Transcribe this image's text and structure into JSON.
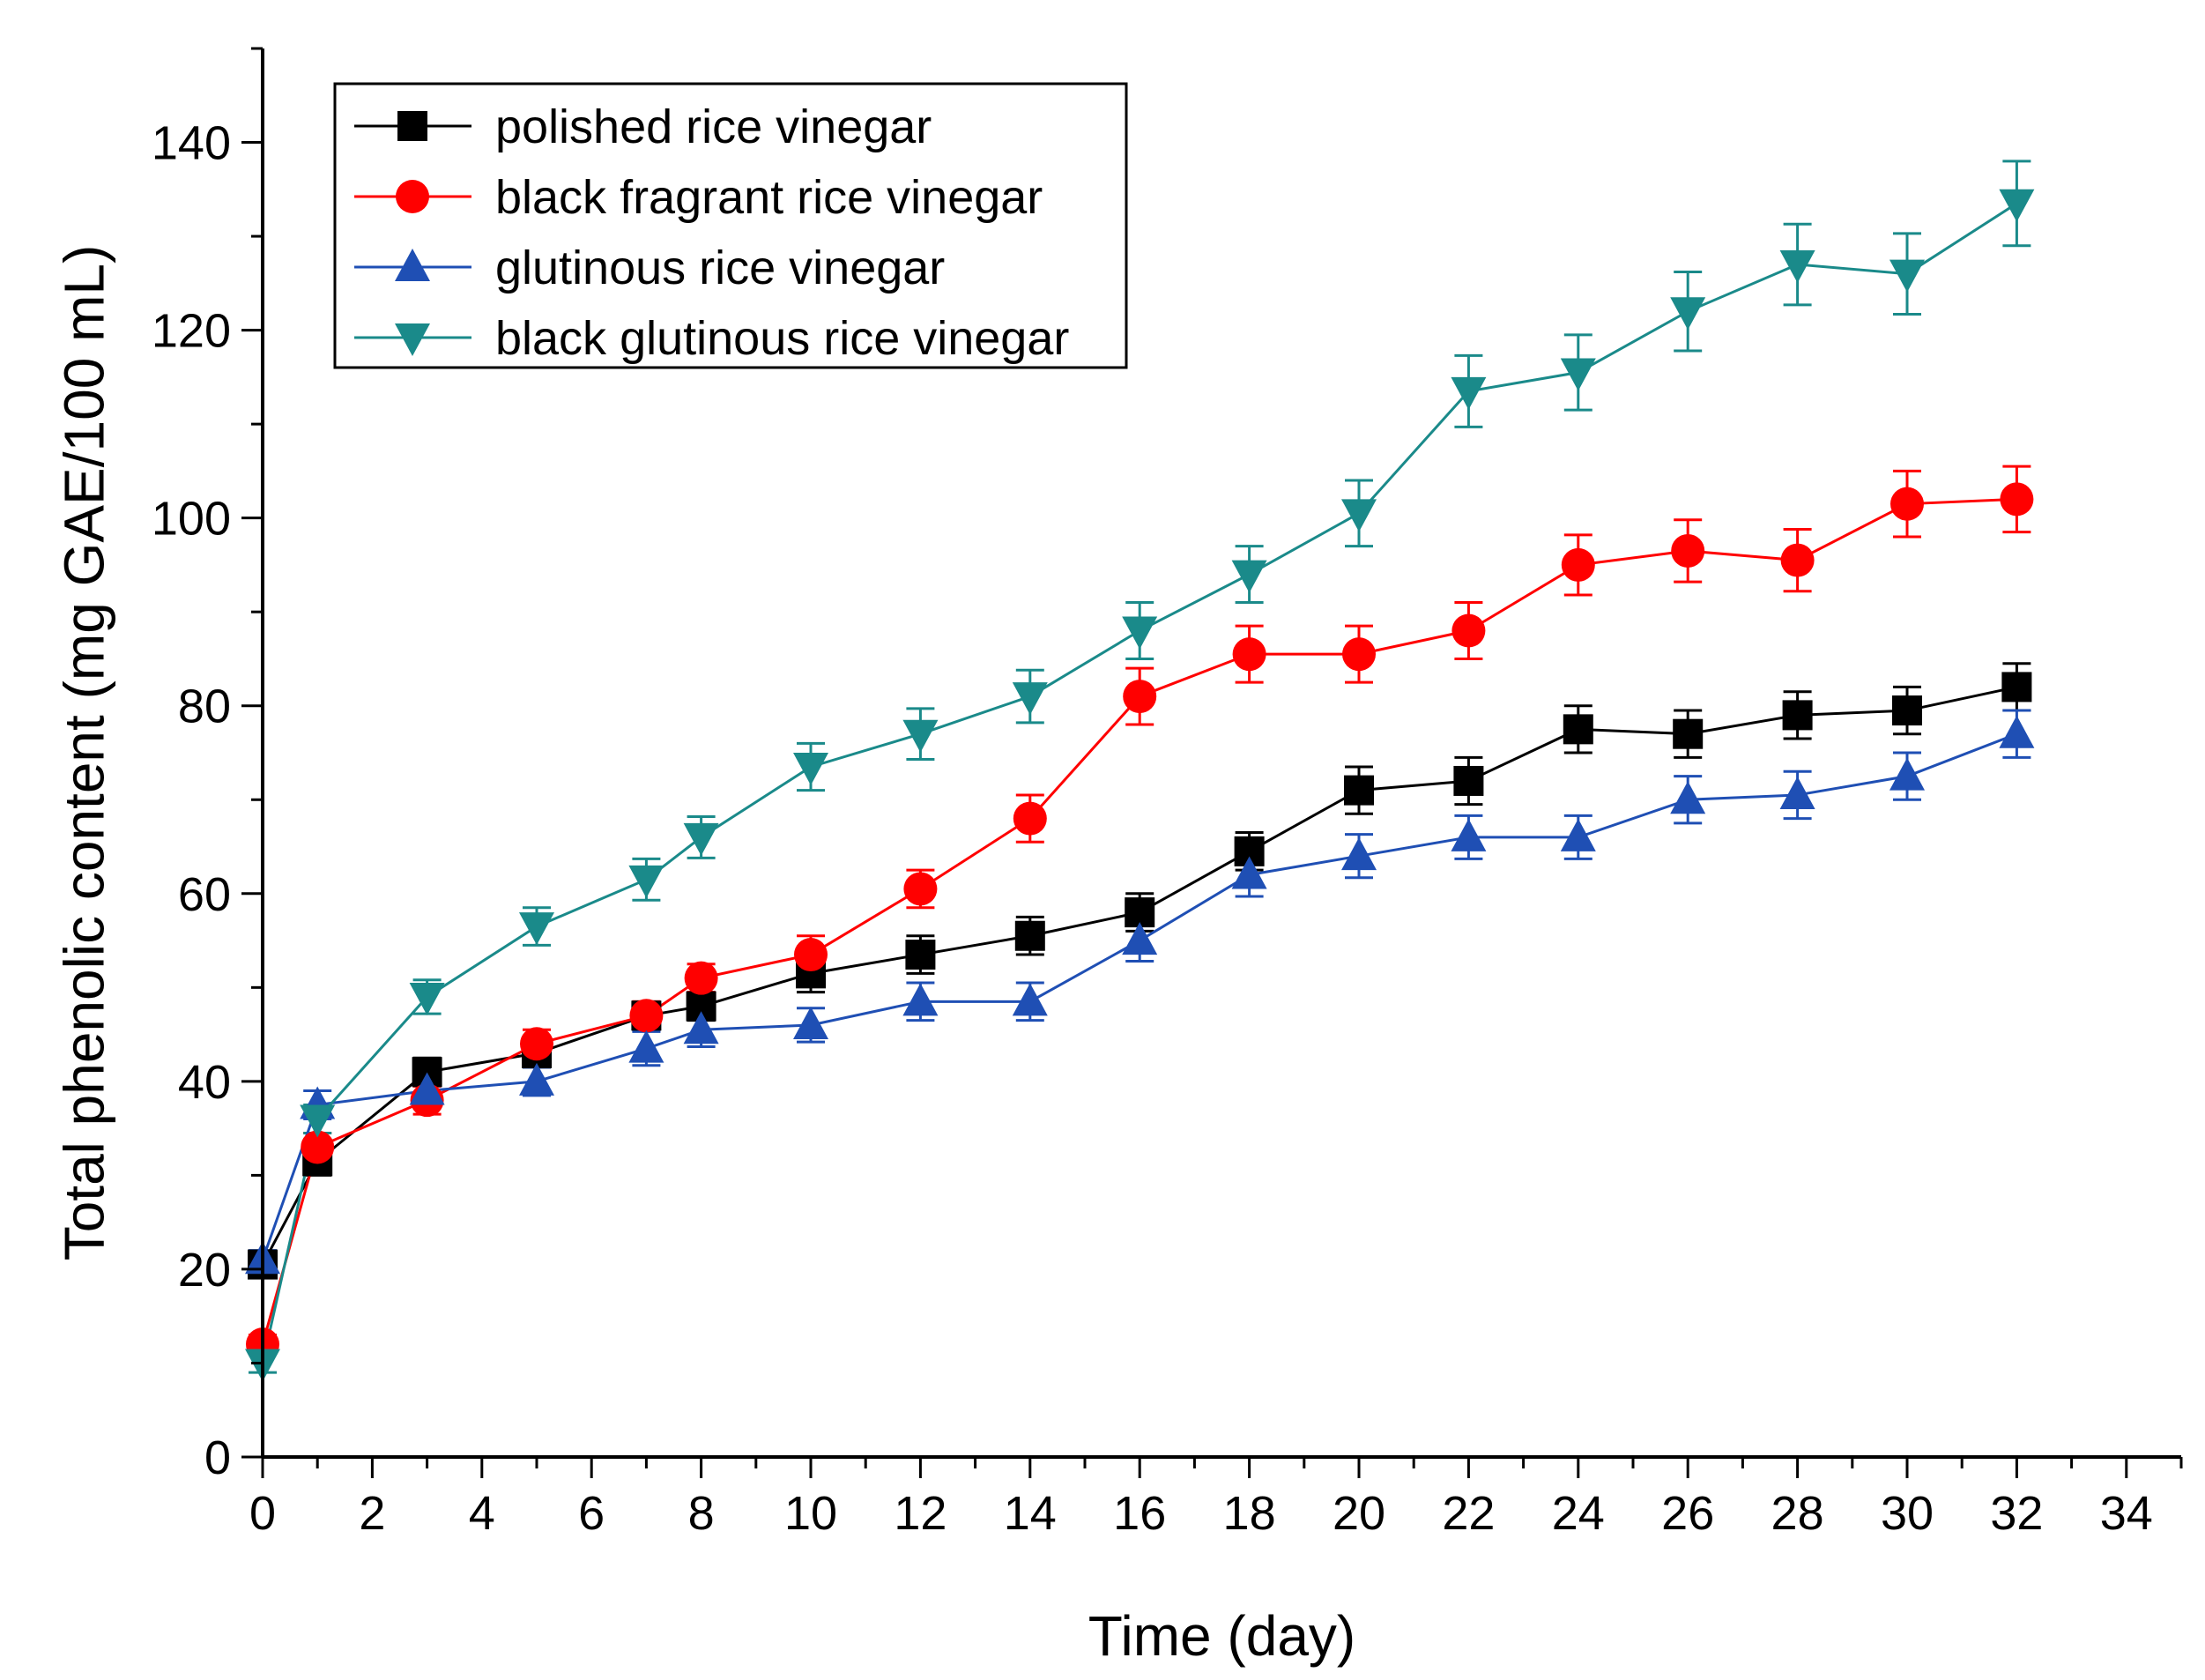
{
  "chart_data": {
    "type": "line",
    "xlabel": "Time (day)",
    "ylabel": "Total phenolic content (mg GAE/100 mL)",
    "xlim": [
      0,
      35
    ],
    "ylim": [
      0,
      150
    ],
    "xticks": [
      0,
      2,
      4,
      6,
      8,
      10,
      12,
      14,
      16,
      18,
      20,
      22,
      24,
      26,
      28,
      30,
      32,
      34
    ],
    "yticks": [
      0,
      20,
      40,
      60,
      80,
      100,
      120,
      140
    ],
    "grid": false,
    "legend_position": "top-left",
    "x": [
      0,
      1,
      3,
      5,
      7,
      8,
      10,
      12,
      14,
      16,
      18,
      20,
      22,
      24,
      26,
      28,
      30,
      32
    ],
    "series": [
      {
        "name": "polished rice vinegar",
        "color": "#000000",
        "marker": "square",
        "values": [
          20.5,
          31.5,
          41,
          43,
          47,
          48,
          51.5,
          53.5,
          55.5,
          58,
          64.5,
          71,
          72,
          77.5,
          77,
          79,
          79.5,
          82
        ],
        "error": [
          1,
          1.5,
          1.5,
          1.5,
          1.5,
          1.5,
          2,
          2,
          2,
          2,
          2,
          2.5,
          2.5,
          2.5,
          2.5,
          2.5,
          2.5,
          2.5
        ]
      },
      {
        "name": "black fragrant rice vinegar",
        "color": "#ff0000",
        "marker": "circle",
        "values": [
          12,
          33,
          38,
          44,
          47,
          51,
          53.5,
          60.5,
          68,
          81,
          85.5,
          85.5,
          88,
          95,
          96.5,
          95.5,
          101.5,
          102
        ],
        "error": [
          1,
          1.5,
          1.5,
          1.5,
          1.5,
          1.5,
          2,
          2,
          2.5,
          3,
          3,
          3,
          3,
          3.2,
          3.3,
          3.3,
          3.5,
          3.5
        ]
      },
      {
        "name": "glutinous rice vinegar",
        "color": "#1f4fb4",
        "marker": "triangle-up",
        "values": [
          21,
          37.5,
          39,
          40,
          43.5,
          45.5,
          46,
          48.5,
          48.5,
          55,
          62,
          64,
          66,
          66,
          70,
          70.5,
          72.5,
          77
        ],
        "error": [
          1,
          1.5,
          1.5,
          1.5,
          1.8,
          1.8,
          1.8,
          2,
          2,
          2.2,
          2.3,
          2.3,
          2.3,
          2.3,
          2.5,
          2.5,
          2.5,
          2.5
        ]
      },
      {
        "name": "black glutinous rice vinegar",
        "color": "#1a8a8a",
        "marker": "triangle-down",
        "values": [
          10,
          36,
          49,
          56.5,
          61.5,
          66,
          73.5,
          77,
          81,
          88,
          94,
          100.5,
          113.5,
          115.5,
          122,
          127,
          126,
          133.5
        ],
        "error": [
          1,
          1.5,
          1.8,
          2,
          2.2,
          2.2,
          2.5,
          2.7,
          2.8,
          3,
          3,
          3.5,
          3.8,
          4,
          4.2,
          4.3,
          4.3,
          4.5
        ]
      }
    ]
  }
}
